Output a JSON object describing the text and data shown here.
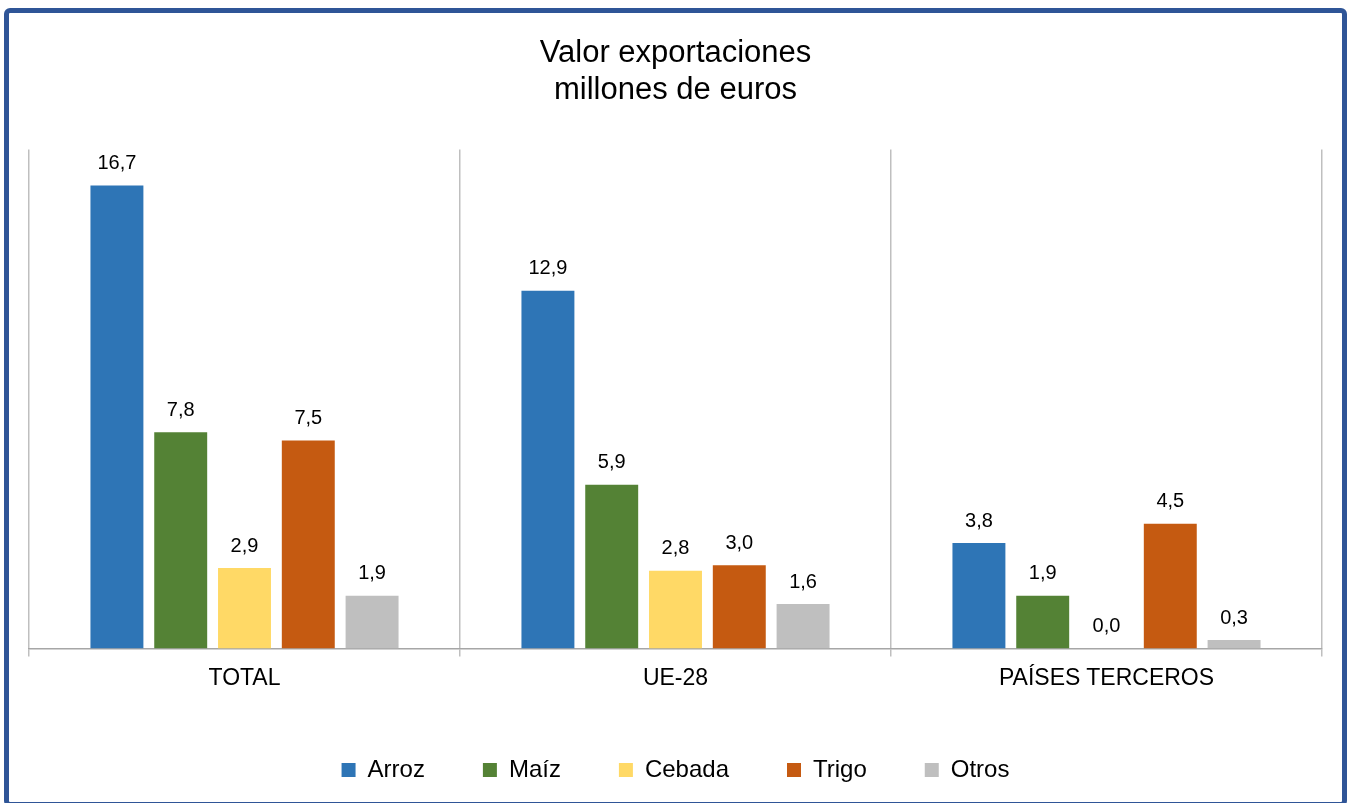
{
  "chart_data": {
    "type": "bar",
    "title": "Valor exportaciones\nmillones de euros",
    "categories": [
      "TOTAL",
      "UE-28",
      "PAÍSES TERCEROS"
    ],
    "series": [
      {
        "name": "Arroz",
        "color": "#2e75b6",
        "values": [
          16.7,
          12.9,
          3.8
        ],
        "value_labels": [
          "16,7",
          "12,9",
          "3,8"
        ]
      },
      {
        "name": "Maíz",
        "color": "#548235",
        "values": [
          7.8,
          5.9,
          1.9
        ],
        "value_labels": [
          "7,8",
          "5,9",
          "1,9"
        ]
      },
      {
        "name": "Cebada",
        "color": "#ffd966",
        "values": [
          2.9,
          2.8,
          0.0
        ],
        "value_labels": [
          "2,9",
          "2,8",
          "0,0"
        ]
      },
      {
        "name": "Trigo",
        "color": "#c55a11",
        "values": [
          7.5,
          3.0,
          4.5
        ],
        "value_labels": [
          "7,5",
          "3,0",
          "4,5"
        ]
      },
      {
        "name": "Otros",
        "color": "#bfbfbf",
        "values": [
          1.9,
          1.6,
          0.3
        ],
        "value_labels": [
          "1,9",
          "1,6",
          "0,3"
        ]
      }
    ],
    "grid": "x",
    "legend": "bottom",
    "tick_labels": "x"
  }
}
